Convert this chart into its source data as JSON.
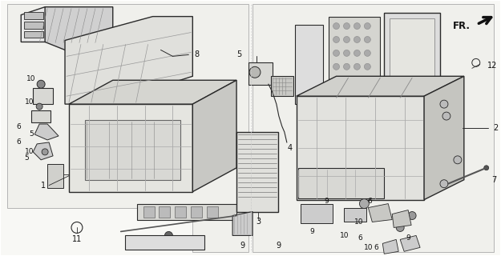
{
  "bg_color": "#f5f5f0",
  "line_color": "#2a2a2a",
  "label_color": "#111111",
  "figsize": [
    6.25,
    3.2
  ],
  "dpi": 100,
  "fr_text": "FR.",
  "part_labels": [
    "1",
    "2",
    "3",
    "4",
    "5",
    "6",
    "7",
    "8",
    "9",
    "10",
    "11",
    "12"
  ],
  "gray_fill": "#b0b0b0",
  "light_gray": "#d8d8d8",
  "dark_gray": "#606060",
  "hatch_color": "#888888"
}
